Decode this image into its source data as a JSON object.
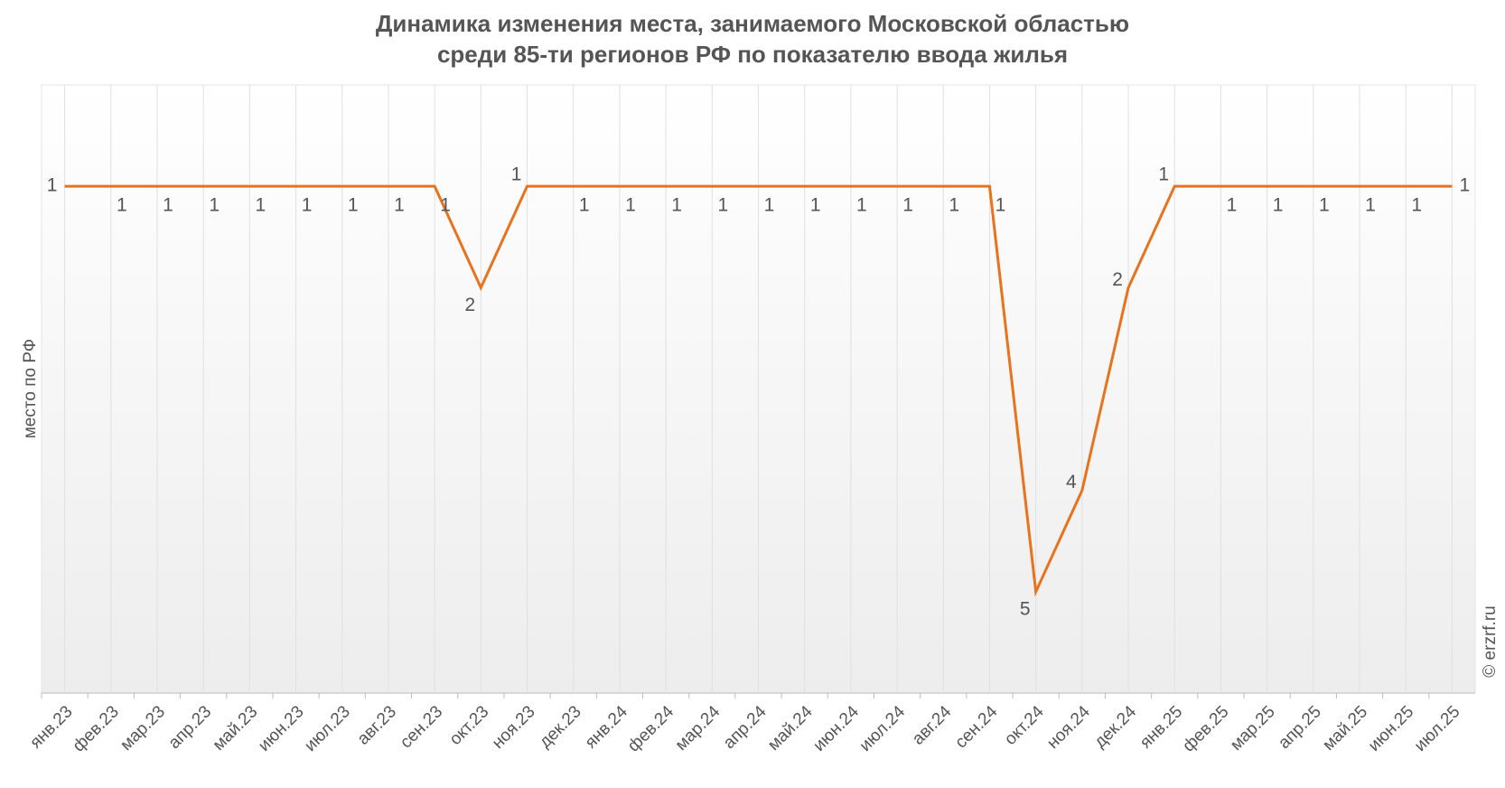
{
  "chart_data": {
    "type": "line",
    "title": [
      "Динамика изменения места, занимаемого Московской областью",
      "среди 85-ти регионов РФ по показателю ввода жилья"
    ],
    "y_label": "место по РФ",
    "credit": "© erzrf.ru",
    "categories": [
      "янв.23",
      "фев.23",
      "мар.23",
      "апр.23",
      "май.23",
      "июн.23",
      "июл.23",
      "авг.23",
      "сен.23",
      "окт.23",
      "ноя.23",
      "дек.23",
      "янв.24",
      "фев.24",
      "мар.24",
      "апр.24",
      "май.24",
      "июн.24",
      "июл.24",
      "авг.24",
      "сен.24",
      "окт.24",
      "ноя.24",
      "дек.24",
      "янв.25",
      "фев.25",
      "мар.25",
      "апр.25",
      "май.25",
      "июн.25",
      "июл.25"
    ],
    "series": [
      {
        "color": "#e8731c",
        "values": [
          1,
          1,
          1,
          1,
          1,
          1,
          1,
          1,
          1,
          2,
          1,
          1,
          1,
          1,
          1,
          1,
          1,
          1,
          1,
          1,
          1,
          5,
          4,
          2,
          1,
          1,
          1,
          1,
          1,
          1,
          1
        ]
      }
    ],
    "ylim": [
      0,
      6
    ],
    "y_reversed": true,
    "grid": true
  }
}
